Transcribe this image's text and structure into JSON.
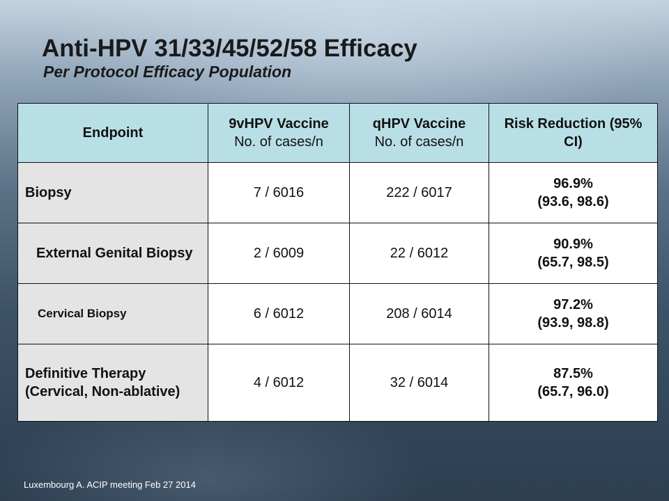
{
  "slide": {
    "title": "Anti-HPV 31/33/45/52/58 Efficacy",
    "subtitle": "Per Protocol Efficacy Population",
    "footnote": "Luxembourg A. ACIP meeting Feb 27 2014"
  },
  "table": {
    "header": {
      "endpoint": "Endpoint",
      "vaccine_9v_title": "9vHPV Vaccine",
      "vaccine_9v_sub": "No. of cases/n",
      "vaccine_q_title": "qHPV Vaccine",
      "vaccine_q_sub": "No. of cases/n",
      "risk_title": "Risk Reduction",
      "risk_sub": "(95% CI)"
    },
    "rows": [
      {
        "endpoint": "Biopsy",
        "vaccine_9v": "7 / 6016",
        "vaccine_q": "222 / 6017",
        "risk_pct": "96.9%",
        "risk_ci": "(93.6, 98.6)"
      },
      {
        "endpoint": "External Genital Biopsy",
        "vaccine_9v": "2 / 6009",
        "vaccine_q": "22 / 6012",
        "risk_pct": "90.9%",
        "risk_ci": "(65.7, 98.5)"
      },
      {
        "endpoint": "Cervical Biopsy",
        "vaccine_9v": "6 / 6012",
        "vaccine_q": "208 / 6014",
        "risk_pct": "97.2%",
        "risk_ci": "(93.9, 98.8)"
      },
      {
        "endpoint": "Definitive Therapy (Cervical, Non-ablative)",
        "vaccine_9v": "4 / 6012",
        "vaccine_q": "32 / 6014",
        "risk_pct": "87.5%",
        "risk_ci": "(65.7, 96.0)"
      }
    ]
  },
  "colors": {
    "header_fill": "#b9dfe6",
    "endpoint_fill": "#e4e4e4",
    "cell_fill": "#ffffff",
    "border": "#111111"
  }
}
